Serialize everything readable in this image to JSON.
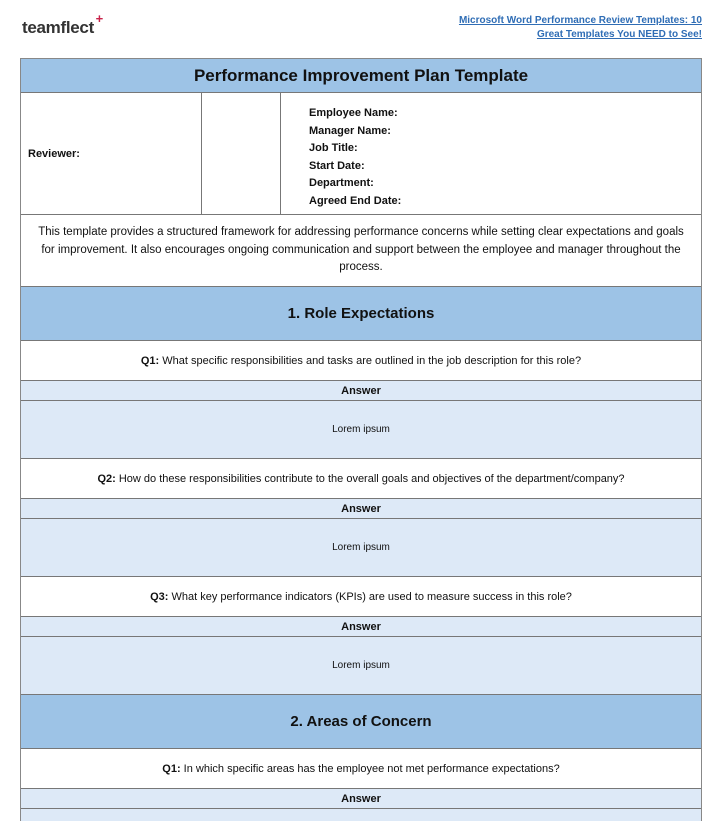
{
  "header": {
    "logo_text": "teamflect",
    "logo_mark": "+",
    "link_line1": "Microsoft Word Performance Review Templates: 10",
    "link_line2": "Great Templates You NEED to See!"
  },
  "doc": {
    "title": "Performance Improvement Plan Template",
    "reviewer_label": "Reviewer:",
    "fields": [
      "Employee Name:",
      "Manager Name:",
      "Job Title:",
      "Start Date:",
      "Department:",
      "Agreed End Date:"
    ],
    "description": "This template provides a structured framework for addressing performance concerns while setting clear expectations and goals for improvement. It also encourages ongoing communication and support between the employee and manager throughout the process.",
    "answer_label": "Answer",
    "sections": [
      {
        "title": "1. Role Expectations",
        "questions": [
          {
            "num": "Q1:",
            "text": "What specific responsibilities and tasks are outlined in the job description for this role?",
            "answer": "Lorem ipsum"
          },
          {
            "num": "Q2:",
            "text": "How do these responsibilities contribute to the overall goals and objectives of the department/company?",
            "answer": "Lorem ipsum"
          },
          {
            "num": "Q3:",
            "text": "What key performance indicators (KPIs) are used to measure success in this role?",
            "answer": "Lorem ipsum"
          }
        ]
      },
      {
        "title": "2. Areas of Concern",
        "questions": [
          {
            "num": "Q1:",
            "text": "In which specific areas has the employee not met performance expectations?"
          }
        ]
      }
    ]
  },
  "colors": {
    "header_blue": "#9dc3e6",
    "answer_bg": "#dde9f7",
    "link": "#2f6db5",
    "logo_accent": "#c8234a"
  }
}
